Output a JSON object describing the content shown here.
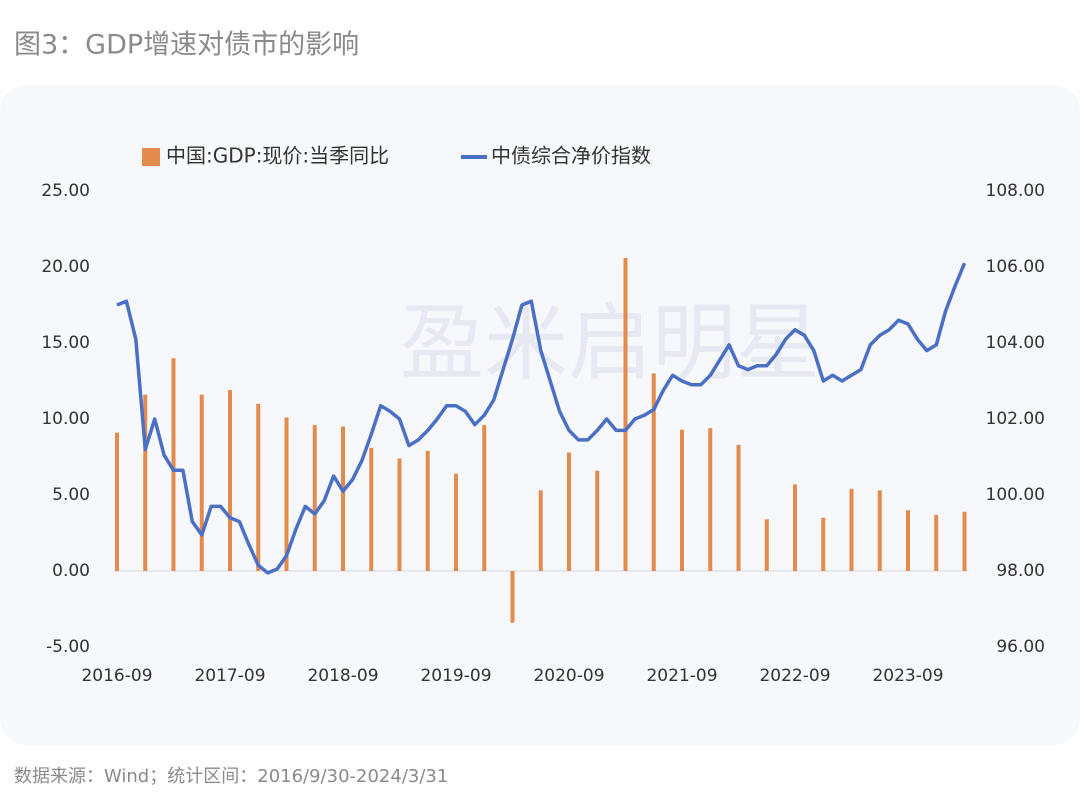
{
  "chart_data": {
    "type": "combo",
    "title": "图3：GDP增速对债市的影响",
    "source": "数据来源：Wind；统计区间：2016/9/30-2024/3/31",
    "watermark": "盈米启明星",
    "categories": [
      "2016-09",
      null,
      null,
      null,
      "2017-09",
      null,
      null,
      null,
      "2018-09",
      null,
      null,
      null,
      "2019-09",
      null,
      null,
      null,
      "2020-09",
      null,
      null,
      null,
      "2021-09",
      null,
      null,
      null,
      "2022-09",
      null,
      null,
      null,
      "2023-09",
      null,
      null
    ],
    "ylim": [
      -5,
      25
    ],
    "yticks": [
      {
        "value": -5,
        "label": "-5.00"
      },
      {
        "value": 0,
        "label": "0.00"
      },
      {
        "value": 5,
        "label": "5.00"
      },
      {
        "value": 10,
        "label": "10.00"
      },
      {
        "value": 15,
        "label": "15.00"
      },
      {
        "value": 20,
        "label": "20.00"
      },
      {
        "value": 25,
        "label": "25.00"
      }
    ],
    "y2lim": [
      96,
      108
    ],
    "y2ticks": [
      {
        "value": 96,
        "label": "96.00"
      },
      {
        "value": 98,
        "label": "98.00"
      },
      {
        "value": 100,
        "label": "100.00"
      },
      {
        "value": 102,
        "label": "102.00"
      },
      {
        "value": 104,
        "label": "104.00"
      },
      {
        "value": 106,
        "label": "106.00"
      },
      {
        "value": 108,
        "label": "108.00"
      }
    ],
    "legend": "top",
    "series": [
      {
        "name": "中国:GDP:现价:当季同比",
        "type": "bar",
        "color": "#e38b4d",
        "values": [
          9.1,
          11.6,
          14.0,
          11.6,
          11.9,
          11.0,
          10.1,
          9.6,
          9.5,
          8.1,
          7.4,
          7.9,
          6.4,
          9.6,
          -3.4,
          5.3,
          7.8,
          6.6,
          20.6,
          13.0,
          9.3,
          9.4,
          8.3,
          3.4,
          5.7,
          3.5,
          5.4,
          5.3,
          4.0,
          3.7,
          3.9
        ]
      },
      {
        "name": "中债综合净价指数",
        "type": "line",
        "axis": "y2",
        "color": "#4a6fc4",
        "x": [
          "2016-09",
          "2016-10",
          "2016-11",
          "2016-12",
          "2017-01",
          "2017-02",
          "2017-03",
          "2017-04",
          "2017-05",
          "2017-06",
          "2017-07",
          "2017-08",
          "2017-09",
          "2017-10",
          "2017-11",
          "2017-12",
          "2018-01",
          "2018-02",
          "2018-03",
          "2018-04",
          "2018-05",
          "2018-06",
          "2018-07",
          "2018-08",
          "2018-09",
          "2018-10",
          "2018-11",
          "2018-12",
          "2019-01",
          "2019-02",
          "2019-03",
          "2019-04",
          "2019-05",
          "2019-06",
          "2019-07",
          "2019-08",
          "2019-09",
          "2019-10",
          "2019-11",
          "2019-12",
          "2020-01",
          "2020-02",
          "2020-03",
          "2020-04",
          "2020-05",
          "2020-06",
          "2020-07",
          "2020-08",
          "2020-09",
          "2020-10",
          "2020-11",
          "2020-12",
          "2021-01",
          "2021-02",
          "2021-03",
          "2021-04",
          "2021-05",
          "2021-06",
          "2021-07",
          "2021-08",
          "2021-09",
          "2021-10",
          "2021-11",
          "2021-12",
          "2022-01",
          "2022-02",
          "2022-03",
          "2022-04",
          "2022-05",
          "2022-06",
          "2022-07",
          "2022-08",
          "2022-09",
          "2022-10",
          "2022-11",
          "2022-12",
          "2023-01",
          "2023-02",
          "2023-03",
          "2023-04",
          "2023-05",
          "2023-06",
          "2023-07",
          "2023-08",
          "2023-09",
          "2023-10",
          "2023-11",
          "2023-12",
          "2024-01",
          "2024-02",
          "2024-03"
        ],
        "values": [
          105.0,
          105.1,
          104.1,
          101.2,
          102.0,
          101.05,
          100.65,
          100.65,
          99.3,
          98.95,
          99.7,
          99.7,
          99.4,
          99.3,
          98.7,
          98.15,
          97.95,
          98.05,
          98.4,
          99.1,
          99.7,
          99.5,
          99.85,
          100.5,
          100.1,
          100.4,
          100.9,
          101.6,
          102.35,
          102.2,
          102.0,
          101.3,
          101.45,
          101.7,
          102.0,
          102.35,
          102.35,
          102.2,
          101.85,
          102.1,
          102.5,
          103.3,
          104.1,
          105.0,
          105.1,
          103.8,
          103.0,
          102.2,
          101.7,
          101.45,
          101.45,
          101.7,
          102.0,
          101.7,
          101.7,
          102.0,
          102.1,
          102.25,
          102.75,
          103.15,
          103.0,
          102.9,
          102.9,
          103.15,
          103.55,
          103.95,
          103.4,
          103.3,
          103.4,
          103.4,
          103.7,
          104.1,
          104.35,
          104.2,
          103.8,
          103.0,
          103.15,
          103.0,
          103.15,
          103.3,
          103.95,
          104.2,
          104.35,
          104.6,
          104.5,
          104.1,
          103.8,
          103.95,
          104.85,
          105.5,
          106.1
        ]
      }
    ]
  }
}
